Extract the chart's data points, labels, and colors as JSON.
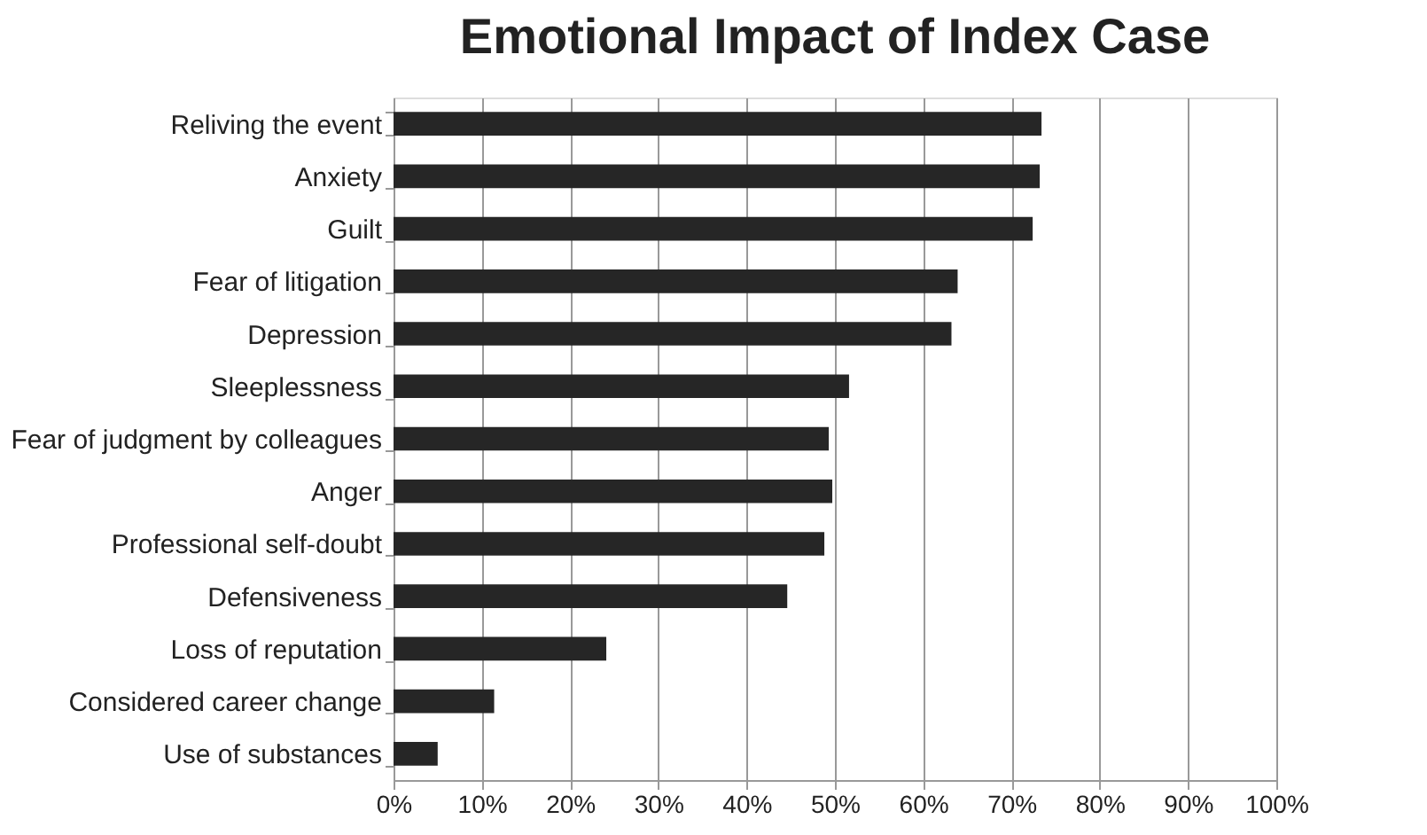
{
  "chart_data": {
    "type": "bar",
    "orientation": "horizontal",
    "title": "Emotional Impact of Index Case",
    "categories": [
      "Reliving the event",
      "Anxiety",
      "Guilt",
      "Fear of litigation",
      "Depression",
      "Sleeplessness",
      "Fear of judgment by colleagues",
      "Anger",
      "Professional self-doubt",
      "Defensiveness",
      "Loss of reputation",
      "Considered career change",
      "Use of substances"
    ],
    "values": [
      73.4,
      73.2,
      72.4,
      63.9,
      63.2,
      51.6,
      49.3,
      49.7,
      48.8,
      44.6,
      24.1,
      11.4,
      5.0
    ],
    "color": "#262626",
    "xlim": [
      0,
      100
    ],
    "xticks": [
      {
        "value": 0,
        "label": "0%"
      },
      {
        "value": 10,
        "label": "10%"
      },
      {
        "value": 20,
        "label": "20%"
      },
      {
        "value": 30,
        "label": "30%"
      },
      {
        "value": 40,
        "label": "40%"
      },
      {
        "value": 50,
        "label": "50%"
      },
      {
        "value": 60,
        "label": "60%"
      },
      {
        "value": 70,
        "label": "70%"
      },
      {
        "value": 80,
        "label": "80%"
      },
      {
        "value": 90,
        "label": "90%"
      },
      {
        "value": 100,
        "label": "100%"
      }
    ],
    "grid": "x"
  }
}
